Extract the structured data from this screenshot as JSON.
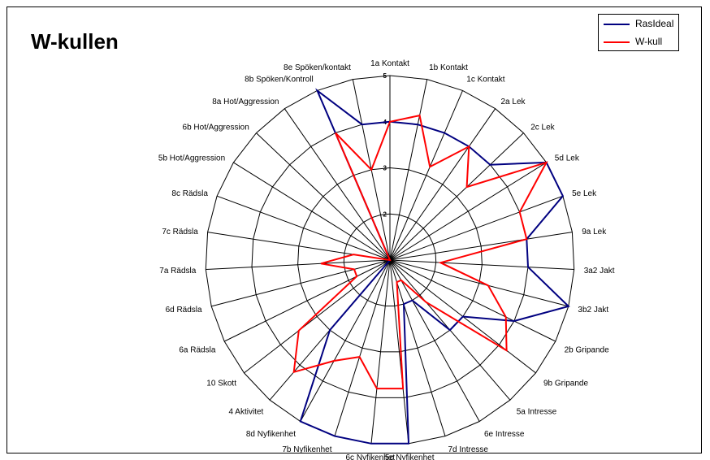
{
  "chart_data": {
    "type": "radar",
    "title": "W-kullen",
    "categories": [
      "1a Kontakt",
      "1b Kontakt",
      "1c Kontakt",
      "2a Lek",
      "2c Lek",
      "5d Lek",
      "5e Lek",
      "9a Lek",
      "3a2 Jakt",
      "3b2 Jakt",
      "2b Gripande",
      "9b Gripande",
      "5a Intresse",
      "6e Intresse",
      "7d Intresse",
      "5c Nyfikenhet",
      "6c Nyfikenhet",
      "7b Nyfikenhet",
      "8d Nyfikenhet",
      "4 Aktivitet",
      "10 Skott",
      "6a Rädsla",
      "6d Rädsla",
      "7a Rädsla",
      "7c Rädsla",
      "8c Rädsla",
      "5b Hot/Aggression",
      "6b Hot/Aggression",
      "8a Hot/Aggression",
      "8b Spöken/Kontroll",
      "8e Spöken/kontakt"
    ],
    "rlim": [
      1,
      5
    ],
    "ticks": [
      "1",
      "2",
      "3",
      "4",
      "5"
    ],
    "series": [
      {
        "name": "RasIdeal",
        "color": "#000080",
        "values": [
          4,
          4,
          4,
          4,
          4,
          5,
          5,
          4,
          4,
          5,
          4,
          3,
          3,
          2,
          2,
          5,
          5,
          5,
          5,
          3,
          1,
          1,
          1,
          1,
          1,
          1,
          1,
          1,
          1,
          5,
          4
        ]
      },
      {
        "name": "W-kull",
        "color": "#ff0000",
        "values": [
          4,
          4.2,
          3.2,
          4,
          3.3,
          5,
          4,
          4,
          2.1,
          3.2,
          3.8,
          4.2,
          2.2,
          1.5,
          1.5,
          3.8,
          3.8,
          3.2,
          3.5,
          4.2,
          3.5,
          1.8,
          1.8,
          2.5,
          1.8,
          1,
          1,
          1,
          1,
          4,
          3
        ]
      }
    ],
    "legend_position": "top-right",
    "grid": true
  }
}
